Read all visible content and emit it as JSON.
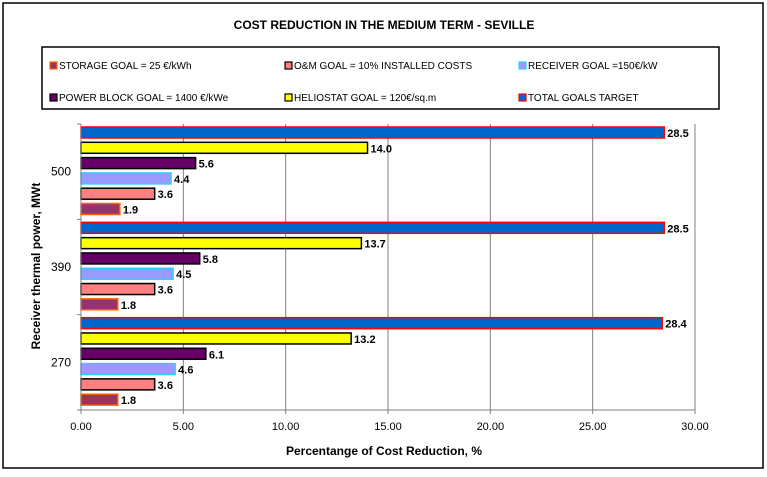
{
  "chart_data": {
    "type": "bar",
    "orientation": "horizontal",
    "title": "COST REDUCTION IN THE MEDIUM TERM - SEVILLE",
    "xlabel": "Percentange of Cost Reduction, %",
    "ylabel": "Receiver thermal power, MWt",
    "xlim": [
      0,
      30
    ],
    "xticks": [
      "0.00",
      "5.00",
      "10.00",
      "15.00",
      "20.00",
      "25.00",
      "30.00"
    ],
    "categories": [
      "500",
      "390",
      "270"
    ],
    "legend_position": "top",
    "series": [
      {
        "name": "TOTAL GOALS TARGET",
        "values": [
          28.5,
          28.5,
          28.4
        ],
        "labels": [
          "28.5",
          "28.5",
          "28.4"
        ],
        "fill": "#0066cc",
        "stroke": "#ff0000"
      },
      {
        "name": "HELIOSTAT GOAL = 120€/sq.m",
        "values": [
          14.0,
          13.7,
          13.2
        ],
        "labels": [
          "14.0",
          "13.7",
          "13.2"
        ],
        "fill": "#ffff00",
        "stroke": "#000000"
      },
      {
        "name": "POWER BLOCK GOAL = 1400 €/kWe",
        "values": [
          5.6,
          5.8,
          6.1
        ],
        "labels": [
          "5.6",
          "5.8",
          "6.1"
        ],
        "fill": "#660066",
        "stroke": "#000000"
      },
      {
        "name": "RECEIVER GOAL =150€/kW",
        "values": [
          4.4,
          4.5,
          4.6
        ],
        "labels": [
          "4.4",
          "4.5",
          "4.6"
        ],
        "fill": "#9999ff",
        "stroke": "#33ccff"
      },
      {
        "name": "O&M GOAL = 10% INSTALLED COSTS",
        "values": [
          3.6,
          3.6,
          3.6
        ],
        "labels": [
          "3.6",
          "3.6",
          "3.6"
        ],
        "fill": "#ff8080",
        "stroke": "#000000"
      },
      {
        "name": "STORAGE GOAL = 25 €/kWh",
        "values": [
          1.9,
          1.8,
          1.8
        ],
        "labels": [
          "1.9",
          "1.8",
          "1.8"
        ],
        "fill": "#993366",
        "stroke": "#ff6600"
      }
    ],
    "legend_order": [
      5,
      4,
      3,
      2,
      1,
      0
    ]
  }
}
